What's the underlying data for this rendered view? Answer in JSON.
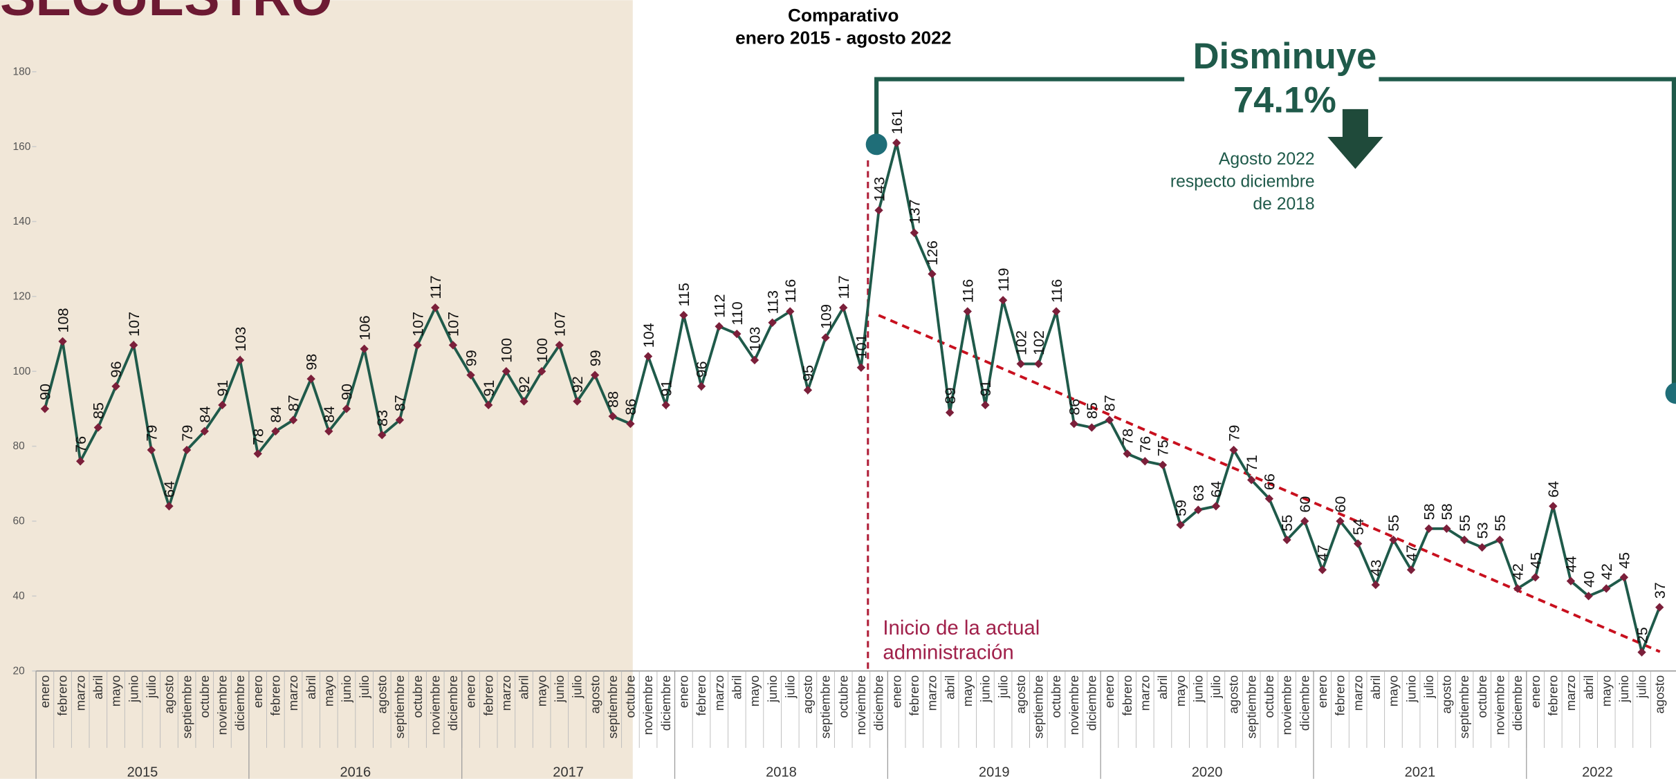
{
  "header": {
    "title": "SECUESTRO"
  },
  "chart_data": {
    "type": "line",
    "subtitle_1": "Comparativo",
    "subtitle_2": "enero 2015 - agosto 2022",
    "annotation_title": "Disminuye",
    "annotation_value": "74.1%",
    "annotation_note_1": "Agosto 2022",
    "annotation_note_2": "respecto diciembre",
    "annotation_note_3": "de 2018",
    "marker_label_1": "Inicio de la actual",
    "marker_label_2": "administración",
    "categories": [
      "enero",
      "febrero",
      "marzo",
      "abril",
      "mayo",
      "junio",
      "julio",
      "agosto",
      "septiembre",
      "octubre",
      "noviembre",
      "diciembre",
      "enero",
      "febrero",
      "marzo",
      "abril",
      "mayo",
      "junio",
      "julio",
      "agosto",
      "septiembre",
      "octubre",
      "noviembre",
      "diciembre",
      "enero",
      "febrero",
      "marzo",
      "abril",
      "mayo",
      "junio",
      "julio",
      "agosto",
      "septiembre",
      "octubre",
      "noviembre",
      "diciembre",
      "enero",
      "febrero",
      "marzo",
      "abril",
      "mayo",
      "junio",
      "julio",
      "agosto",
      "septiembre",
      "octubre",
      "noviembre",
      "diciembre",
      "enero",
      "febrero",
      "marzo",
      "abril",
      "mayo",
      "junio",
      "julio",
      "agosto",
      "septiembre",
      "octubre",
      "noviembre",
      "diciembre",
      "enero",
      "febrero",
      "marzo",
      "abril",
      "mayo",
      "junio",
      "julio",
      "agosto",
      "septiembre",
      "octubre",
      "noviembre",
      "diciembre",
      "enero",
      "febrero",
      "marzo",
      "abril",
      "mayo",
      "junio",
      "julio",
      "agosto",
      "septiembre",
      "octubre",
      "noviembre",
      "diciembre",
      "enero",
      "febrero",
      "marzo",
      "abril",
      "mayo",
      "junio",
      "julio",
      "agosto"
    ],
    "years": [
      "2015",
      "2016",
      "2017",
      "2018",
      "2019",
      "2020",
      "2021",
      "2022"
    ],
    "values": [
      90,
      108,
      76,
      85,
      96,
      107,
      79,
      64,
      79,
      84,
      91,
      103,
      78,
      84,
      87,
      98,
      84,
      90,
      106,
      83,
      87,
      107,
      117,
      107,
      99,
      91,
      100,
      92,
      100,
      107,
      92,
      99,
      88,
      86,
      104,
      91,
      115,
      96,
      112,
      110,
      103,
      113,
      116,
      95,
      109,
      117,
      101,
      143,
      161,
      137,
      126,
      89,
      116,
      91,
      119,
      102,
      102,
      116,
      86,
      85,
      87,
      78,
      76,
      75,
      59,
      63,
      64,
      79,
      71,
      66,
      55,
      60,
      47,
      60,
      54,
      43,
      55,
      47,
      58,
      58,
      55,
      53,
      55,
      42,
      45,
      64,
      44,
      40,
      42,
      45,
      25,
      37
    ],
    "color": "#1f5a4a",
    "marker_color": "#7b1f3a",
    "ylim": [
      20,
      180
    ],
    "yticks": [
      20,
      40,
      60,
      80,
      100,
      120,
      140,
      160,
      180
    ]
  }
}
